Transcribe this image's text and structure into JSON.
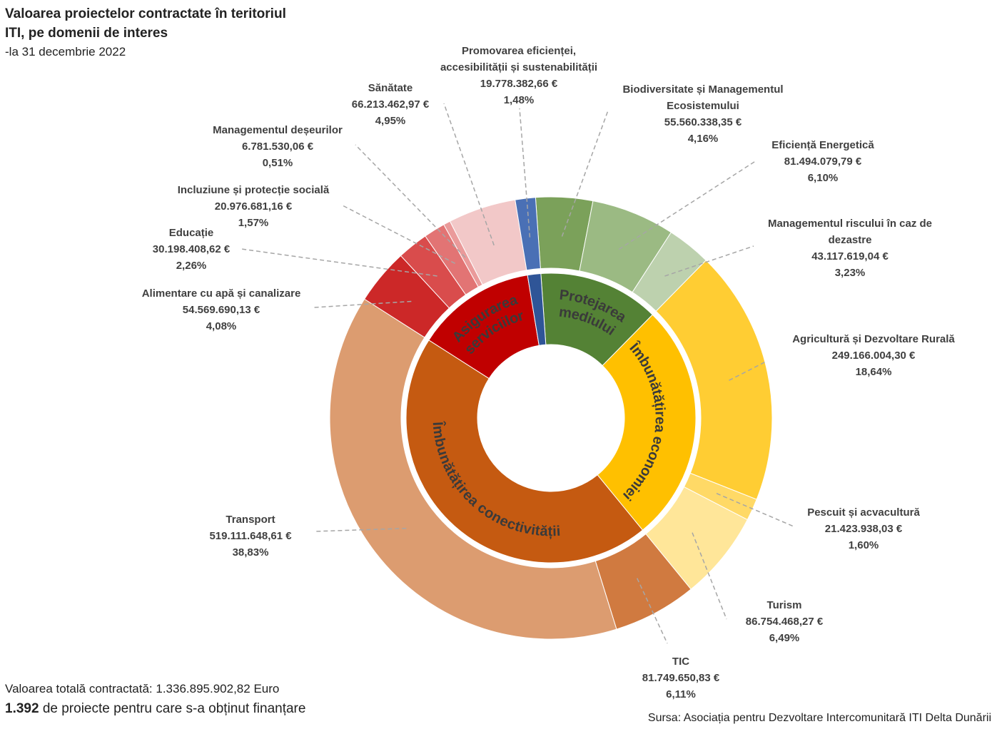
{
  "title": "Valoarea proiectelor contractate în teritoriul ITI, pe domenii de interes",
  "subtitle": "-la 31 decembrie 2022",
  "footer": {
    "total": "Valoarea totală contractată: 1.336.895.902,82 Euro",
    "projects_count": "1.392",
    "projects_text": " de proiecte pentru care s-a obținut finanțare",
    "source": "Sursa: Asociația pentru Dezvoltare Intercomunitară ITI Delta Dunării"
  },
  "chart_data": {
    "type": "pie",
    "variant": "sunburst-donut",
    "inner_ring": [
      {
        "name": "Protejarea mediului",
        "color": "#548235"
      },
      {
        "name": "Îmbunătățirea economiei",
        "color": "#FFC000"
      },
      {
        "name": "Îmbunătățirea conectivității",
        "color": "#C55A11"
      },
      {
        "name": "Asigurarea serviciilor",
        "color": "#C00000"
      }
    ],
    "inner_ring_extra": {
      "color": "#2F5597",
      "share_of": "Promovarea eficienței, accesibilității și sustenabilității"
    },
    "outer_ring": [
      {
        "name": "Biodiversitate și Managementul Ecosistemului",
        "value": 55560338.35,
        "value_label": "55.560.338,35 €",
        "percent": "4,16%",
        "group": "Protejarea mediului",
        "color": "#7BA15A"
      },
      {
        "name": "Eficiență Energetică",
        "value": 81494079.79,
        "value_label": "81.494.079,79 €",
        "percent": "6,10%",
        "group": "Protejarea mediului",
        "color": "#9BBA83"
      },
      {
        "name": "Managementul riscului în caz de dezastre",
        "value": 43117619.04,
        "value_label": "43.117.619,04 €",
        "percent": "3,23%",
        "group": "Protejarea mediului",
        "color": "#BDD1AE"
      },
      {
        "name": "Agricultură și Dezvoltare Rurală",
        "value": 249166004.3,
        "value_label": "249.166.004,30 €",
        "percent": "18,64%",
        "group": "Îmbunătățirea economiei",
        "color": "#FFCD33"
      },
      {
        "name": "Pescuit și acvacultură",
        "value": 21423938.03,
        "value_label": "21.423.938,03 €",
        "percent": "1,60%",
        "group": "Îmbunătățirea economiei",
        "color": "#FFD966"
      },
      {
        "name": "Turism",
        "value": 86754468.27,
        "value_label": "86.754.468,27 €",
        "percent": "6,49%",
        "group": "Îmbunătățirea economiei",
        "color": "#FFE699"
      },
      {
        "name": "TIC",
        "value": 81749650.83,
        "value_label": "81.749.650,83 €",
        "percent": "6,11%",
        "group": "Îmbunătățirea conectivității",
        "color": "#D07A40"
      },
      {
        "name": "Transport",
        "value": 519111648.61,
        "value_label": "519.111.648,61 €",
        "percent": "38,83%",
        "group": "Îmbunătățirea conectivității",
        "color": "#DC9C70"
      },
      {
        "name": "Alimentare cu apă și canalizare",
        "value": 54569690.13,
        "value_label": "54.569.690,13 €",
        "percent": "4,08%",
        "group": "Asigurarea serviciilor",
        "color": "#CC2828"
      },
      {
        "name": "Educație",
        "value": 30198408.62,
        "value_label": "30.198.408,62 €",
        "percent": "2,26%",
        "group": "Asigurarea serviciilor",
        "color": "#D94C4C"
      },
      {
        "name": "Incluziune și protecție socială",
        "value": 20976681.16,
        "value_label": "20.976.681,16 €",
        "percent": "1,57%",
        "group": "Asigurarea serviciilor",
        "color": "#E27474"
      },
      {
        "name": "Managementul deșeurilor",
        "value": 6781530.06,
        "value_label": "6.781.530,06 €",
        "percent": "0,51%",
        "group": "Asigurarea serviciilor",
        "color": "#EA9A9A"
      },
      {
        "name": "Sănătate",
        "value": 66213462.97,
        "value_label": "66.213.462,97 €",
        "percent": "4,95%",
        "group": "Asigurarea serviciilor",
        "color": "#F2C8C8"
      },
      {
        "name": "Promovarea eficienței, accesibilității și sustenabilității",
        "value": 19778382.66,
        "value_label": "19.778.382,66 €",
        "percent": "1,48%",
        "group": "Promovarea",
        "color": "#4A70B5"
      }
    ]
  }
}
